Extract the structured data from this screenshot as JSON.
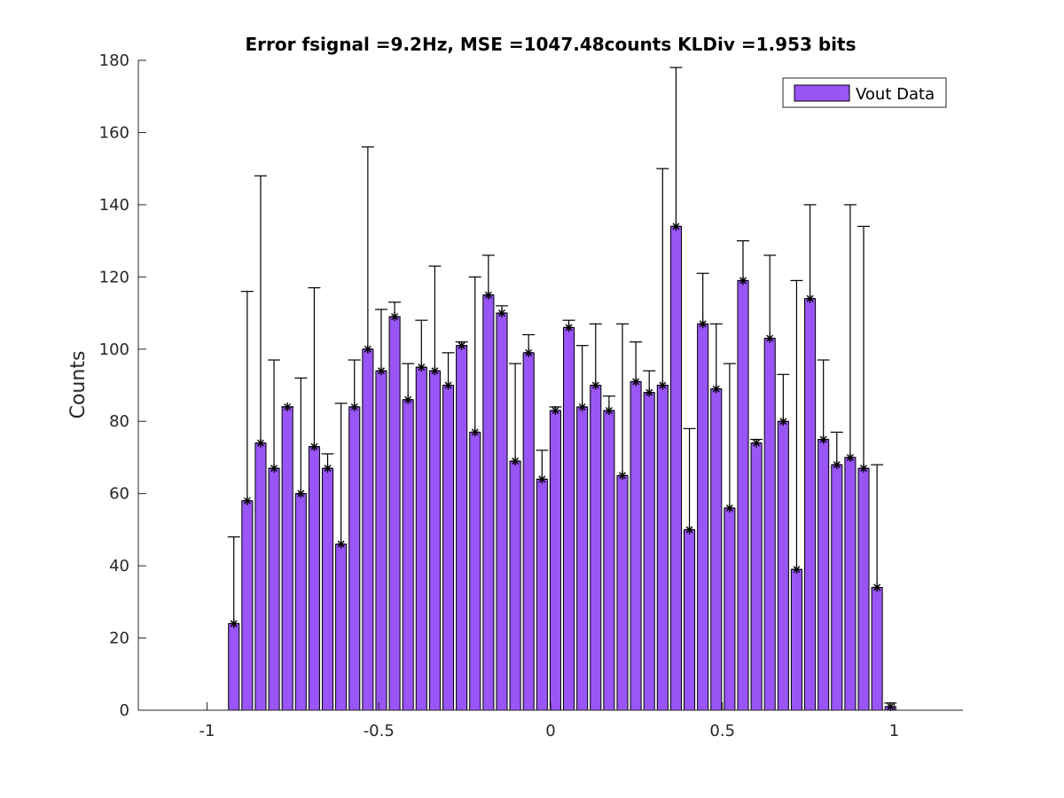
{
  "chart_data": {
    "type": "bar",
    "title": "Error fsignal =9.2Hz, MSE =1047.48counts KLDiv =1.953 bits",
    "xlabel": "",
    "ylabel": "Counts",
    "xlim": [
      -1.2,
      1.2
    ],
    "ylim": [
      0,
      180
    ],
    "xticks": [
      -1,
      -0.5,
      0,
      0.5,
      1
    ],
    "xtick_labels": [
      "-1",
      "-0.5",
      "0",
      "0.5",
      "1"
    ],
    "yticks": [
      0,
      20,
      40,
      60,
      80,
      100,
      120,
      140,
      160,
      180
    ],
    "ytick_labels": [
      "0",
      "20",
      "40",
      "60",
      "80",
      "100",
      "120",
      "140",
      "160",
      "180"
    ],
    "grid": false,
    "legend_position": "top-right",
    "bar_color": "#9955f5",
    "x": [
      -0.922,
      -0.883,
      -0.844,
      -0.805,
      -0.766,
      -0.727,
      -0.688,
      -0.649,
      -0.61,
      -0.571,
      -0.532,
      -0.493,
      -0.454,
      -0.415,
      -0.376,
      -0.337,
      -0.298,
      -0.259,
      -0.22,
      -0.181,
      -0.142,
      -0.103,
      -0.064,
      -0.025,
      0.014,
      0.053,
      0.092,
      0.131,
      0.17,
      0.209,
      0.248,
      0.287,
      0.326,
      0.365,
      0.404,
      0.443,
      0.482,
      0.521,
      0.56,
      0.599,
      0.638,
      0.677,
      0.716,
      0.755,
      0.794,
      0.833,
      0.872,
      0.911,
      0.95,
      0.989
    ],
    "series": [
      {
        "name": "Vout Data",
        "values": [
          24,
          58,
          74,
          67,
          84,
          60,
          73,
          67,
          46,
          84,
          100,
          94,
          109,
          86,
          95,
          94,
          90,
          101,
          77,
          115,
          110,
          69,
          99,
          64,
          83,
          106,
          84,
          90,
          83,
          65,
          91,
          88,
          90,
          134,
          50,
          107,
          89,
          56,
          119,
          74,
          103,
          80,
          39,
          114,
          75,
          68,
          70,
          67,
          34,
          1
        ]
      }
    ],
    "error_bar_upper": [
      48,
      116,
      148,
      97,
      84,
      92,
      117,
      71,
      85,
      97,
      156,
      111,
      113,
      96,
      108,
      123,
      99,
      102,
      120,
      126,
      112,
      96,
      104,
      72,
      84,
      108,
      101,
      107,
      87,
      107,
      102,
      94,
      150,
      178,
      78,
      121,
      107,
      96,
      130,
      75,
      126,
      93,
      119,
      140,
      97,
      77,
      140,
      134,
      68,
      2
    ]
  }
}
